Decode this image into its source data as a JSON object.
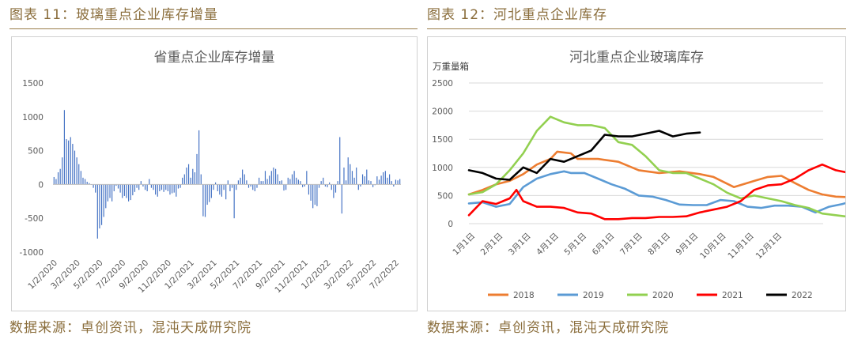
{
  "left": {
    "figure_title": "图表 11：玻璃重点企业库存增量",
    "source": "数据来源：卓创资讯，混沌天成研究院"
  },
  "right": {
    "figure_title": "图表 12：河北重点企业库存",
    "source": "数据来源：卓创资讯，混沌天成研究院"
  },
  "chart_data": [
    {
      "type": "bar",
      "title": "省重点企业库存增量",
      "xlabel": "",
      "ylabel": "",
      "ylim": [
        -1000,
        1500
      ],
      "yticks": [
        1500,
        1000,
        500,
        0,
        -500,
        -1000
      ],
      "xtick_labels": [
        "1/2/2020",
        "3/2/2020",
        "5/2/2020",
        "7/2/2020",
        "9/2/2020",
        "11/2/2020",
        "1/2/2021",
        "3/2/2021",
        "5/2/2021",
        "7/2/2021",
        "9/2/2021",
        "11/2/2021",
        "1/2/2022",
        "3/2/2022",
        "5/2/2022",
        "7/2/2022"
      ],
      "grid": false,
      "color": "#4472c4",
      "values": [
        110,
        80,
        180,
        230,
        400,
        1100,
        670,
        650,
        700,
        600,
        500,
        400,
        300,
        200,
        100,
        80,
        40,
        20,
        0,
        -50,
        -120,
        -800,
        -650,
        -600,
        -480,
        -350,
        -250,
        -200,
        -250,
        -100,
        -20,
        -60,
        -120,
        -200,
        -170,
        -200,
        -250,
        -230,
        -160,
        -110,
        -50,
        -80,
        50,
        -30,
        -80,
        -100,
        80,
        -50,
        -80,
        -150,
        -180,
        -100,
        -80,
        -110,
        -80,
        -100,
        -150,
        -130,
        -120,
        -180,
        -60,
        -50,
        100,
        150,
        250,
        300,
        100,
        230,
        180,
        450,
        800,
        150,
        -470,
        -480,
        -300,
        -260,
        -200,
        -80,
        30,
        -100,
        -150,
        -180,
        -80,
        -220,
        60,
        -100,
        -50,
        -500,
        -80,
        60,
        100,
        220,
        150,
        60,
        -50,
        -30,
        -80,
        -100,
        -50,
        100,
        50,
        50,
        200,
        80,
        130,
        200,
        250,
        230,
        150,
        50,
        60,
        -90,
        -80,
        100,
        80,
        150,
        200,
        100,
        70,
        50,
        -40,
        -30,
        200,
        -150,
        -240,
        -350,
        -300,
        -320,
        -50,
        50,
        100,
        -30,
        -40,
        30,
        -80,
        -200,
        -120,
        50,
        700,
        -430,
        250,
        60,
        400,
        300,
        200,
        100,
        250,
        -80,
        -30,
        150,
        120,
        220,
        60,
        50,
        -40,
        -10,
        120,
        70,
        130,
        180,
        200,
        100,
        150,
        50,
        -30,
        70,
        60,
        80
      ]
    },
    {
      "type": "line",
      "title": "河北重点企业玻璃库存",
      "ylabel": "万重量箱",
      "xlabel": "",
      "ylim": [
        0,
        2500
      ],
      "yticks": [
        2500,
        2000,
        1500,
        1000,
        500,
        0
      ],
      "x_range_days": [
        1,
        366
      ],
      "xtick_labels": [
        "1月1日",
        "2月1日",
        "3月1日",
        "4月1日",
        "5月1日",
        "6月1日",
        "7月1日",
        "8月1日",
        "9月1日",
        "10月1日",
        "11月1日",
        "12月1日"
      ],
      "grid": true,
      "legend": "bottom",
      "series": [
        {
          "name": "2018",
          "color": "#ed7d31",
          "points": [
            [
              1,
              520
            ],
            [
              15,
              600
            ],
            [
              29,
              700
            ],
            [
              43,
              760
            ],
            [
              57,
              880
            ],
            [
              71,
              1050
            ],
            [
              85,
              1150
            ],
            [
              92,
              1280
            ],
            [
              106,
              1250
            ],
            [
              113,
              1150
            ],
            [
              134,
              1150
            ],
            [
              155,
              1100
            ],
            [
              176,
              950
            ],
            [
              197,
              900
            ],
            [
              218,
              930
            ],
            [
              239,
              880
            ],
            [
              253,
              830
            ],
            [
              274,
              650
            ],
            [
              295,
              760
            ],
            [
              309,
              830
            ],
            [
              323,
              850
            ],
            [
              337,
              720
            ],
            [
              351,
              600
            ],
            [
              365,
              520
            ],
            [
              379,
              480
            ],
            [
              393,
              470
            ],
            [
              407,
              460
            ],
            [
              421,
              420
            ],
            [
              435,
              380
            ],
            [
              442,
              350
            ]
          ]
        },
        {
          "name": "2019",
          "color": "#5b9bd5",
          "points": [
            [
              1,
              360
            ],
            [
              15,
              380
            ],
            [
              29,
              300
            ],
            [
              43,
              350
            ],
            [
              57,
              650
            ],
            [
              71,
              800
            ],
            [
              85,
              880
            ],
            [
              99,
              930
            ],
            [
              106,
              900
            ],
            [
              120,
              900
            ],
            [
              134,
              800
            ],
            [
              148,
              700
            ],
            [
              162,
              620
            ],
            [
              176,
              500
            ],
            [
              190,
              480
            ],
            [
              204,
              420
            ],
            [
              218,
              340
            ],
            [
              232,
              330
            ],
            [
              246,
              330
            ],
            [
              260,
              420
            ],
            [
              274,
              400
            ],
            [
              288,
              300
            ],
            [
              302,
              280
            ],
            [
              316,
              320
            ],
            [
              330,
              320
            ],
            [
              344,
              300
            ],
            [
              358,
              200
            ],
            [
              372,
              300
            ],
            [
              386,
              350
            ],
            [
              400,
              420
            ],
            [
              414,
              450
            ],
            [
              428,
              480
            ],
            [
              442,
              470
            ]
          ]
        },
        {
          "name": "2020",
          "color": "#92d050",
          "points": [
            [
              1,
              520
            ],
            [
              15,
              560
            ],
            [
              29,
              700
            ],
            [
              43,
              950
            ],
            [
              57,
              1250
            ],
            [
              71,
              1650
            ],
            [
              85,
              1900
            ],
            [
              99,
              1800
            ],
            [
              113,
              1750
            ],
            [
              127,
              1750
            ],
            [
              141,
              1700
            ],
            [
              155,
              1450
            ],
            [
              169,
              1400
            ],
            [
              183,
              1200
            ],
            [
              197,
              950
            ],
            [
              211,
              900
            ],
            [
              225,
              900
            ],
            [
              239,
              800
            ],
            [
              253,
              700
            ],
            [
              267,
              550
            ],
            [
              281,
              450
            ],
            [
              295,
              500
            ],
            [
              309,
              450
            ],
            [
              323,
              400
            ],
            [
              337,
              330
            ],
            [
              351,
              280
            ],
            [
              365,
              180
            ],
            [
              379,
              150
            ],
            [
              393,
              120
            ],
            [
              407,
              100
            ],
            [
              421,
              90
            ],
            [
              442,
              90
            ]
          ]
        },
        {
          "name": "2021",
          "color": "#ff0000",
          "points": [
            [
              1,
              150
            ],
            [
              15,
              400
            ],
            [
              29,
              350
            ],
            [
              43,
              450
            ],
            [
              50,
              600
            ],
            [
              57,
              400
            ],
            [
              71,
              300
            ],
            [
              85,
              300
            ],
            [
              99,
              280
            ],
            [
              113,
              200
            ],
            [
              127,
              180
            ],
            [
              141,
              80
            ],
            [
              155,
              80
            ],
            [
              169,
              100
            ],
            [
              183,
              100
            ],
            [
              197,
              120
            ],
            [
              211,
              120
            ],
            [
              225,
              130
            ],
            [
              239,
              200
            ],
            [
              253,
              250
            ],
            [
              267,
              300
            ],
            [
              281,
              400
            ],
            [
              295,
              600
            ],
            [
              309,
              680
            ],
            [
              323,
              700
            ],
            [
              337,
              800
            ],
            [
              351,
              950
            ],
            [
              365,
              1050
            ],
            [
              379,
              950
            ],
            [
              393,
              900
            ],
            [
              407,
              850
            ],
            [
              421,
              860
            ],
            [
              442,
              870
            ]
          ]
        },
        {
          "name": "2022",
          "color": "#000000",
          "points": [
            [
              1,
              950
            ],
            [
              15,
              900
            ],
            [
              29,
              800
            ],
            [
              43,
              780
            ],
            [
              57,
              1000
            ],
            [
              71,
              900
            ],
            [
              85,
              1150
            ],
            [
              99,
              1100
            ],
            [
              113,
              1200
            ],
            [
              127,
              1300
            ],
            [
              141,
              1580
            ],
            [
              155,
              1550
            ],
            [
              169,
              1550
            ],
            [
              183,
              1600
            ],
            [
              197,
              1650
            ],
            [
              211,
              1550
            ],
            [
              225,
              1600
            ],
            [
              239,
              1620
            ]
          ]
        }
      ]
    }
  ]
}
